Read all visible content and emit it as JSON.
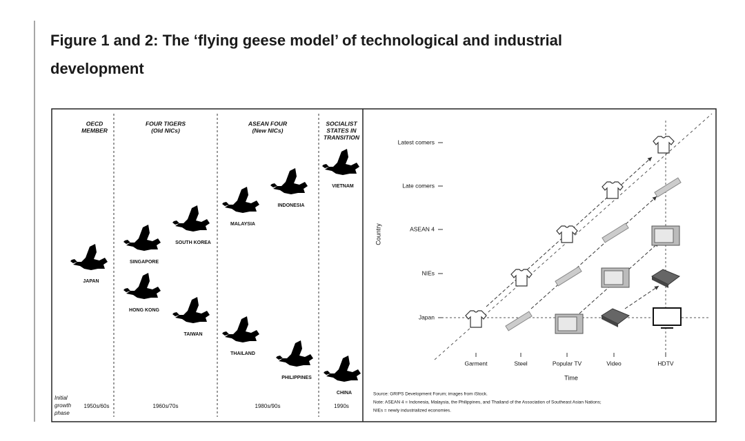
{
  "title": "Figure 1 and 2: The ‘flying geese model’ of technological and industrial development",
  "figure1": {
    "groups": [
      {
        "lines": [
          "OECD",
          "MEMBER"
        ]
      },
      {
        "lines": [
          "FOUR TIGERS",
          "(Old NICs)"
        ]
      },
      {
        "lines": [
          "ASEAN FOUR",
          "(New NICs)"
        ]
      },
      {
        "lines": [
          "SOCIALIST",
          "STATES IN",
          "TRANSITION"
        ]
      }
    ],
    "countries": [
      "JAPAN",
      "SINGAPORE",
      "HONG KONG",
      "SOUTH KOREA",
      "TAIWAN",
      "MALAYSIA",
      "THAILAND",
      "INDONESIA",
      "PHILIPPINES",
      "VIETNAM",
      "CHINA"
    ],
    "phase_label": [
      "Initial",
      "growth",
      "phase"
    ],
    "periods": [
      "1950s/60s",
      "1960s/70s",
      "1980s/90s",
      "1990s"
    ]
  },
  "figure2": {
    "y_axis_label": "Country",
    "x_axis_label": "Time",
    "rows": [
      "Latest comers",
      "Late comers",
      "ASEAN 4",
      "NIEs",
      "Japan"
    ],
    "columns": [
      "Garment",
      "Steel",
      "Popular TV",
      "Video",
      "HDTV"
    ],
    "notes": [
      "Source: GRIPS Development Forum; images from iStock.",
      "Note: ASEAN 4 = Indonesia, Malaysia, the Philippines, and Thailand of the Association of Southeast Asian Nations;",
      "NIEs = newly industrialized economies."
    ]
  }
}
